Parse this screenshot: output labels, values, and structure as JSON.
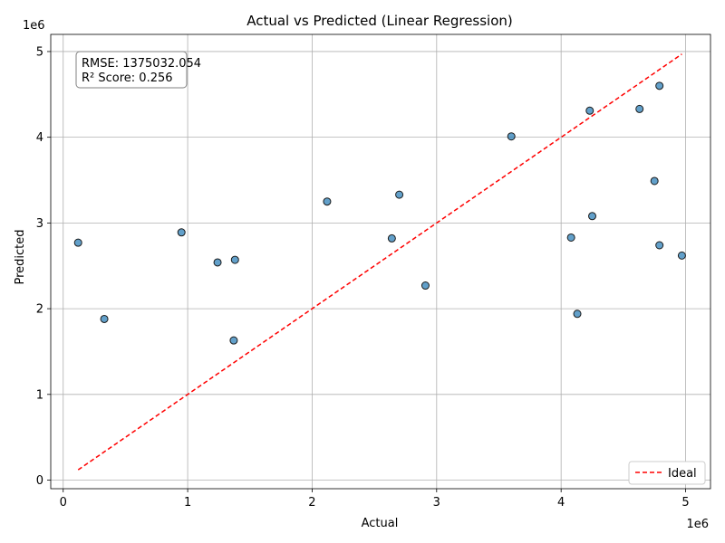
{
  "chart_data": {
    "type": "scatter",
    "title": "Actual vs Predicted (Linear Regression)",
    "xlabel": "Actual",
    "ylabel": "Predicted",
    "x_multiplier": "1e6",
    "y_multiplier": "1e6",
    "xlim": [
      -100000,
      5200000
    ],
    "ylim": [
      -100000,
      5200000
    ],
    "x_ticks": [
      0,
      1000000,
      2000000,
      3000000,
      4000000,
      5000000
    ],
    "x_tick_labels": [
      "0",
      "1",
      "2",
      "3",
      "4",
      "5"
    ],
    "y_ticks": [
      0,
      1000000,
      2000000,
      3000000,
      4000000,
      5000000
    ],
    "y_tick_labels": [
      "0",
      "1",
      "2",
      "3",
      "4",
      "5"
    ],
    "grid": true,
    "points": [
      {
        "x": 120000,
        "y": 2770000
      },
      {
        "x": 330000,
        "y": 1880000
      },
      {
        "x": 950000,
        "y": 2890000
      },
      {
        "x": 1240000,
        "y": 2540000
      },
      {
        "x": 1370000,
        "y": 1630000
      },
      {
        "x": 1380000,
        "y": 2570000
      },
      {
        "x": 2120000,
        "y": 3250000
      },
      {
        "x": 2640000,
        "y": 2820000
      },
      {
        "x": 2700000,
        "y": 3330000
      },
      {
        "x": 2910000,
        "y": 2270000
      },
      {
        "x": 3600000,
        "y": 4010000
      },
      {
        "x": 4080000,
        "y": 2830000
      },
      {
        "x": 4130000,
        "y": 1940000
      },
      {
        "x": 4230000,
        "y": 4310000
      },
      {
        "x": 4250000,
        "y": 3080000
      },
      {
        "x": 4630000,
        "y": 4330000
      },
      {
        "x": 4750000,
        "y": 3490000
      },
      {
        "x": 4790000,
        "y": 2740000
      },
      {
        "x": 4790000,
        "y": 4600000
      },
      {
        "x": 4970000,
        "y": 2620000
      }
    ],
    "ideal_line": {
      "x": [
        120000,
        4970000
      ],
      "y": [
        120000,
        4970000
      ]
    },
    "point_color": "#1f77b4",
    "point_edge_color": "#1a1a1a",
    "ideal_color": "#ff0000",
    "legend": {
      "position": "lower-right",
      "entries": [
        "Ideal"
      ]
    },
    "annotation": {
      "line1": "RMSE: 1375032.054",
      "line2": "R² Score: 0.256"
    }
  }
}
